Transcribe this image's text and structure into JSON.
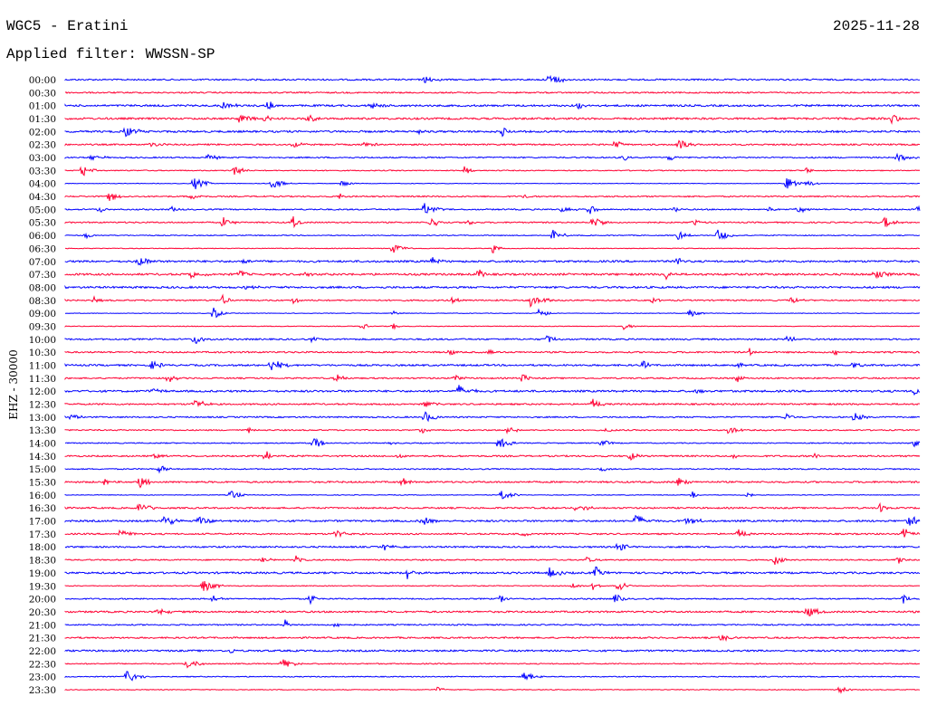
{
  "header": {
    "title": "WGC5 - Eratini",
    "filter": "Applied filter: WWSSN-SP",
    "date": "2025-11-28"
  },
  "chart_data": {
    "type": "line",
    "title": "WGC5 - Eratini",
    "ylabel": "EHZ - 30000",
    "minutes_per_row": 30,
    "colors": {
      "even": "#0000ff",
      "odd": "#ff0033"
    },
    "rows": [
      {
        "label": "00:00",
        "events": [
          12.6,
          17.0
        ]
      },
      {
        "label": "00:30",
        "events": []
      },
      {
        "label": "01:00",
        "events": [
          5.5,
          7.1,
          10.7,
          18.0
        ]
      },
      {
        "label": "01:30",
        "events": [
          6.1,
          7.0,
          8.5,
          29.0
        ]
      },
      {
        "label": "02:00",
        "events": [
          2.1,
          12.4,
          15.3
        ]
      },
      {
        "label": "02:30",
        "events": [
          3.0,
          8.0,
          10.4,
          19.3,
          21.5
        ]
      },
      {
        "label": "03:00",
        "events": [
          0.9,
          5.0,
          19.6,
          21.2,
          29.2
        ]
      },
      {
        "label": "03:30",
        "events": [
          0.6,
          5.9,
          14.0,
          26.0
        ]
      },
      {
        "label": "04:00",
        "events": [
          4.5,
          7.2,
          9.7,
          25.3,
          26.0
        ]
      },
      {
        "label": "04:30",
        "events": [
          1.5,
          4.4,
          9.6,
          16.1
        ]
      },
      {
        "label": "05:00",
        "events": [
          1.2,
          3.7,
          12.6,
          17.4,
          18.4,
          21.4,
          24.7,
          25.7,
          29.9
        ]
      },
      {
        "label": "05:30",
        "events": [
          5.5,
          8.0,
          12.8,
          14.1,
          18.5,
          22.0,
          28.7
        ]
      },
      {
        "label": "06:00",
        "events": [
          0.7,
          17.1,
          21.5,
          22.9
        ]
      },
      {
        "label": "06:30",
        "events": [
          11.5,
          15.0
        ]
      },
      {
        "label": "07:00",
        "events": [
          2.5,
          6.2,
          12.9,
          21.5
        ]
      },
      {
        "label": "07:30",
        "events": [
          4.4,
          6.1,
          8.4,
          14.5,
          21.1,
          28.4
        ]
      },
      {
        "label": "08:00",
        "events": [
          6.3
        ]
      },
      {
        "label": "08:30",
        "events": [
          1.0,
          5.5,
          8.0,
          13.6,
          16.3,
          20.6,
          25.5
        ]
      },
      {
        "label": "09:00",
        "events": [
          5.2,
          11.5,
          16.6,
          21.9
        ]
      },
      {
        "label": "09:30",
        "events": [
          10.4,
          11.5,
          19.6
        ]
      },
      {
        "label": "10:00",
        "events": [
          4.5,
          8.7,
          16.9,
          25.3
        ]
      },
      {
        "label": "10:30",
        "events": [
          13.5,
          14.9,
          24.0,
          27.0
        ]
      },
      {
        "label": "11:00",
        "events": [
          3.0,
          7.2,
          20.3,
          23.5,
          27.6
        ]
      },
      {
        "label": "11:30",
        "events": [
          3.6,
          9.5,
          13.6,
          16.0,
          23.6
        ]
      },
      {
        "label": "12:00",
        "events": [
          3.0,
          13.8,
          22.1,
          29.8
        ]
      },
      {
        "label": "12:30",
        "events": [
          4.5,
          12.6,
          18.5
        ]
      },
      {
        "label": "13:00",
        "events": [
          0.2,
          12.6,
          25.3,
          27.7
        ]
      },
      {
        "label": "13:30",
        "events": [
          6.4,
          12.5,
          15.5,
          19.0,
          23.3
        ]
      },
      {
        "label": "14:00",
        "events": [
          8.7,
          11.4,
          15.2,
          18.8,
          29.8
        ]
      },
      {
        "label": "14:30",
        "events": [
          3.1,
          7.0,
          11.7,
          19.8,
          23.5,
          26.3
        ]
      },
      {
        "label": "15:00",
        "events": [
          3.3,
          18.8
        ]
      },
      {
        "label": "15:30",
        "events": [
          1.4,
          2.6,
          11.8,
          21.5
        ]
      },
      {
        "label": "16:00",
        "events": [
          5.8,
          15.3,
          22.0,
          23.9
        ]
      },
      {
        "label": "16:30",
        "events": [
          2.6,
          17.9,
          28.6
        ]
      },
      {
        "label": "17:00",
        "events": [
          3.4,
          4.7,
          12.5,
          20.0,
          21.8,
          29.6
        ]
      },
      {
        "label": "17:30",
        "events": [
          1.9,
          9.5,
          16.0,
          23.6,
          29.4
        ]
      },
      {
        "label": "18:00",
        "events": [
          11.2,
          19.4
        ]
      },
      {
        "label": "18:30",
        "events": [
          6.9,
          8.1,
          18.3,
          24.9,
          29.2
        ]
      },
      {
        "label": "19:00",
        "events": [
          12.0,
          17.0,
          18.6
        ]
      },
      {
        "label": "19:30",
        "events": [
          4.8,
          17.8,
          18.5,
          19.4
        ]
      },
      {
        "label": "20:00",
        "events": [
          5.2,
          8.6,
          15.3,
          19.3,
          29.4
        ]
      },
      {
        "label": "20:30",
        "events": [
          3.2,
          26.0
        ]
      },
      {
        "label": "21:00",
        "events": [
          7.7,
          9.5
        ]
      },
      {
        "label": "21:30",
        "events": [
          23.0
        ]
      },
      {
        "label": "22:00",
        "events": [
          5.8
        ]
      },
      {
        "label": "22:30",
        "events": [
          4.2,
          7.6
        ]
      },
      {
        "label": "23:00",
        "events": [
          2.1,
          16.1
        ]
      },
      {
        "label": "23:30",
        "events": [
          13.0,
          27.2
        ]
      }
    ]
  }
}
